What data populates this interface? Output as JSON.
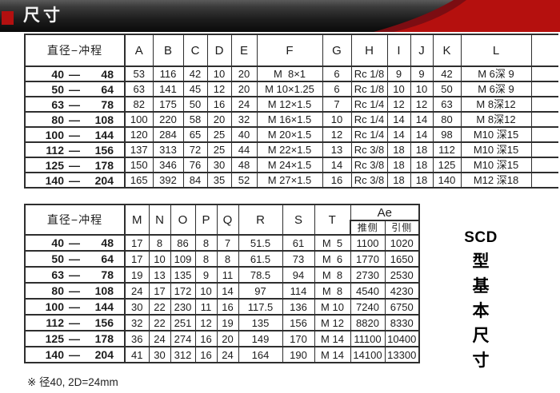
{
  "banner": {
    "title": "尺寸"
  },
  "table1": {
    "label_header": "直径−冲程",
    "header": [
      "A",
      "B",
      "C",
      "D",
      "E",
      "F",
      "G",
      "H",
      "I",
      "J",
      "K",
      "L"
    ],
    "rows": [
      {
        "dia": "40",
        "dash": "—",
        "stroke": "48",
        "cells": [
          "53",
          "116",
          "42",
          "10",
          "20",
          "M  8×1",
          "6",
          "Rc 1/8",
          "9",
          "9",
          "42",
          "M 6深 9"
        ]
      },
      {
        "dia": "50",
        "dash": "—",
        "stroke": "64",
        "cells": [
          "63",
          "141",
          "45",
          "12",
          "20",
          "M 10×1.25",
          "6",
          "Rc 1/8",
          "10",
          "10",
          "50",
          "M 6深 9"
        ]
      },
      {
        "dia": "63",
        "dash": "—",
        "stroke": "78",
        "cells": [
          "82",
          "175",
          "50",
          "16",
          "24",
          "M 12×1.5",
          "7",
          "Rc 1/4",
          "12",
          "12",
          "63",
          "M 8深12"
        ]
      },
      {
        "dia": "80",
        "dash": "—",
        "stroke": "108",
        "cells": [
          "100",
          "220",
          "58",
          "20",
          "32",
          "M 16×1.5",
          "10",
          "Rc 1/4",
          "14",
          "14",
          "80",
          "M 8深12"
        ]
      },
      {
        "dia": "100",
        "dash": "—",
        "stroke": "144",
        "cells": [
          "120",
          "284",
          "65",
          "25",
          "40",
          "M 20×1.5",
          "12",
          "Rc 1/4",
          "14",
          "14",
          "98",
          "M10 深15"
        ]
      },
      {
        "dia": "112",
        "dash": "—",
        "stroke": "156",
        "cells": [
          "137",
          "313",
          "72",
          "25",
          "44",
          "M 22×1.5",
          "13",
          "Rc 3/8",
          "18",
          "18",
          "112",
          "M10 深15"
        ]
      },
      {
        "dia": "125",
        "dash": "—",
        "stroke": "178",
        "cells": [
          "150",
          "346",
          "76",
          "30",
          "48",
          "M 24×1.5",
          "14",
          "Rc 3/8",
          "18",
          "18",
          "125",
          "M10 深15"
        ]
      },
      {
        "dia": "140",
        "dash": "—",
        "stroke": "204",
        "cells": [
          "165",
          "392",
          "84",
          "35",
          "52",
          "M 27×1.5",
          "16",
          "Rc 3/8",
          "18",
          "18",
          "140",
          "M12 深18"
        ]
      }
    ]
  },
  "table2": {
    "label_header": "直径−冲程",
    "header": [
      "M",
      "N",
      "O",
      "P",
      "Q",
      "R",
      "S",
      "T"
    ],
    "ae_header": "Ae",
    "ae_sub": [
      "推侧",
      "引侧"
    ],
    "rows": [
      {
        "dia": "40",
        "dash": "—",
        "stroke": "48",
        "cells": [
          "17",
          "8",
          "86",
          "8",
          "7",
          "51.5",
          "61",
          "M  5",
          "1100",
          "1020"
        ]
      },
      {
        "dia": "50",
        "dash": "—",
        "stroke": "64",
        "cells": [
          "17",
          "10",
          "109",
          "8",
          "8",
          "61.5",
          "73",
          "M  6",
          "1770",
          "1650"
        ]
      },
      {
        "dia": "63",
        "dash": "—",
        "stroke": "78",
        "cells": [
          "19",
          "13",
          "135",
          "9",
          "11",
          "78.5",
          "94",
          "M  8",
          "2730",
          "2530"
        ]
      },
      {
        "dia": "80",
        "dash": "—",
        "stroke": "108",
        "cells": [
          "24",
          "17",
          "172",
          "10",
          "14",
          "97",
          "114",
          "M  8",
          "4540",
          "4230"
        ]
      },
      {
        "dia": "100",
        "dash": "—",
        "stroke": "144",
        "cells": [
          "30",
          "22",
          "230",
          "11",
          "16",
          "117.5",
          "136",
          "M 10",
          "7240",
          "6750"
        ]
      },
      {
        "dia": "112",
        "dash": "—",
        "stroke": "156",
        "cells": [
          "32",
          "22",
          "251",
          "12",
          "19",
          "135",
          "156",
          "M 12",
          "8820",
          "8330"
        ]
      },
      {
        "dia": "125",
        "dash": "—",
        "stroke": "178",
        "cells": [
          "36",
          "24",
          "274",
          "16",
          "20",
          "149",
          "170",
          "M 14",
          "11100",
          "10400"
        ]
      },
      {
        "dia": "140",
        "dash": "—",
        "stroke": "204",
        "cells": [
          "41",
          "30",
          "312",
          "16",
          "24",
          "164",
          "190",
          "M 14",
          "14100",
          "13300"
        ]
      }
    ]
  },
  "footnote": "※ 径40, 2D=24mm",
  "side_label": {
    "latin": "SCD",
    "chars": [
      "型",
      "基",
      "本",
      "尺",
      "寸"
    ]
  },
  "colors": {
    "accent_red": "#b5100e",
    "maroon": "#7c0d12",
    "banner_dark": "#0a0a0a",
    "border": "#2e2e2e"
  }
}
